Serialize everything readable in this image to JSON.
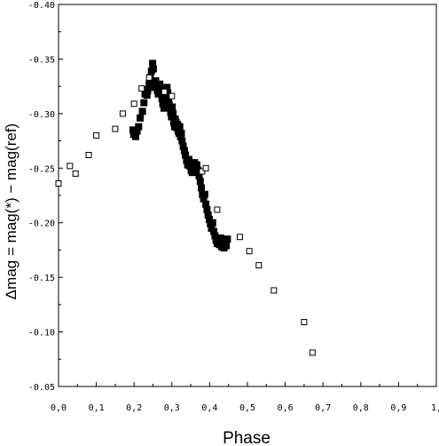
{
  "chart_data": {
    "type": "scatter",
    "title": "",
    "xlabel": "Phase",
    "ylabel": "Δmag = mag(*) − mag(ref)",
    "xlim": [
      0.0,
      1.0
    ],
    "ylim": [
      -0.4,
      -0.05
    ],
    "y_axis_inverted": true,
    "grid": false,
    "legend": "none",
    "x_ticks": [
      {
        "value": 0.0,
        "label": "0,0"
      },
      {
        "value": 0.1,
        "label": "0,1"
      },
      {
        "value": 0.2,
        "label": "0,2"
      },
      {
        "value": 0.3,
        "label": "0,3"
      },
      {
        "value": 0.4,
        "label": "0,4"
      },
      {
        "value": 0.5,
        "label": "0,5"
      },
      {
        "value": 0.6,
        "label": "0,6"
      },
      {
        "value": 0.7,
        "label": "0,7"
      },
      {
        "value": 0.8,
        "label": "0,8"
      },
      {
        "value": 0.9,
        "label": "0,9"
      },
      {
        "value": 1.0,
        "label": "1,"
      }
    ],
    "y_ticks": [
      {
        "value": -0.4,
        "label": "-0.40"
      },
      {
        "value": -0.35,
        "label": "-0.35"
      },
      {
        "value": -0.3,
        "label": "-0.30"
      },
      {
        "value": -0.25,
        "label": "-0.25"
      },
      {
        "value": -0.2,
        "label": "-0.20"
      },
      {
        "value": -0.15,
        "label": "-0.15"
      },
      {
        "value": -0.1,
        "label": "-0.10"
      },
      {
        "value": -0.05,
        "label": "-0.05"
      }
    ],
    "series": [
      {
        "marker": "filled-square",
        "color": "#000000",
        "points": [
          [
            0.197,
            -0.285
          ],
          [
            0.199,
            -0.281
          ],
          [
            0.201,
            -0.283
          ],
          [
            0.204,
            -0.279
          ],
          [
            0.208,
            -0.284
          ],
          [
            0.212,
            -0.288
          ],
          [
            0.216,
            -0.296
          ],
          [
            0.222,
            -0.302
          ],
          [
            0.226,
            -0.31
          ],
          [
            0.229,
            -0.318
          ],
          [
            0.231,
            -0.322
          ],
          [
            0.234,
            -0.317
          ],
          [
            0.236,
            -0.321
          ],
          [
            0.24,
            -0.327
          ],
          [
            0.243,
            -0.333
          ],
          [
            0.246,
            -0.339
          ],
          [
            0.249,
            -0.346
          ],
          [
            0.251,
            -0.341
          ],
          [
            0.253,
            -0.329
          ],
          [
            0.255,
            -0.324
          ],
          [
            0.257,
            -0.33
          ],
          [
            0.259,
            -0.326
          ],
          [
            0.262,
            -0.321
          ],
          [
            0.264,
            -0.318
          ],
          [
            0.266,
            -0.323
          ],
          [
            0.268,
            -0.327
          ],
          [
            0.27,
            -0.322
          ],
          [
            0.272,
            -0.318
          ],
          [
            0.274,
            -0.314
          ],
          [
            0.276,
            -0.309
          ],
          [
            0.279,
            -0.305
          ],
          [
            0.281,
            -0.31
          ],
          [
            0.283,
            -0.315
          ],
          [
            0.285,
            -0.32
          ],
          [
            0.287,
            -0.324
          ],
          [
            0.289,
            -0.319
          ],
          [
            0.291,
            -0.313
          ],
          [
            0.293,
            -0.308
          ],
          [
            0.295,
            -0.305
          ],
          [
            0.297,
            -0.301
          ],
          [
            0.299,
            -0.297
          ],
          [
            0.301,
            -0.306
          ],
          [
            0.303,
            -0.3
          ],
          [
            0.305,
            -0.292
          ],
          [
            0.307,
            -0.288
          ],
          [
            0.309,
            -0.295
          ],
          [
            0.311,
            -0.292
          ],
          [
            0.313,
            -0.287
          ],
          [
            0.315,
            -0.29
          ],
          [
            0.317,
            -0.284
          ],
          [
            0.319,
            -0.282
          ],
          [
            0.321,
            -0.288
          ],
          [
            0.323,
            -0.279
          ],
          [
            0.325,
            -0.282
          ],
          [
            0.327,
            -0.275
          ],
          [
            0.33,
            -0.27
          ],
          [
            0.333,
            -0.266
          ],
          [
            0.336,
            -0.262
          ],
          [
            0.339,
            -0.257
          ],
          [
            0.342,
            -0.253
          ],
          [
            0.345,
            -0.258
          ],
          [
            0.348,
            -0.252
          ],
          [
            0.351,
            -0.248
          ],
          [
            0.354,
            -0.246
          ],
          [
            0.357,
            -0.252
          ],
          [
            0.36,
            -0.255
          ],
          [
            0.363,
            -0.25
          ],
          [
            0.366,
            -0.253
          ],
          [
            0.369,
            -0.248
          ],
          [
            0.372,
            -0.243
          ],
          [
            0.375,
            -0.238
          ],
          [
            0.378,
            -0.232
          ],
          [
            0.381,
            -0.226
          ],
          [
            0.384,
            -0.222
          ],
          [
            0.387,
            -0.226
          ],
          [
            0.39,
            -0.217
          ],
          [
            0.393,
            -0.212
          ],
          [
            0.396,
            -0.207
          ],
          [
            0.399,
            -0.203
          ],
          [
            0.402,
            -0.199
          ],
          [
            0.405,
            -0.195
          ],
          [
            0.408,
            -0.2
          ],
          [
            0.411,
            -0.192
          ],
          [
            0.414,
            -0.188
          ],
          [
            0.417,
            -0.184
          ],
          [
            0.42,
            -0.181
          ],
          [
            0.423,
            -0.185
          ],
          [
            0.426,
            -0.18
          ],
          [
            0.429,
            -0.186
          ],
          [
            0.432,
            -0.178
          ],
          [
            0.435,
            -0.182
          ],
          [
            0.438,
            -0.177
          ],
          [
            0.441,
            -0.183
          ],
          [
            0.444,
            -0.179
          ],
          [
            0.447,
            -0.185
          ]
        ]
      },
      {
        "marker": "open-square",
        "color": "#000000",
        "points": [
          [
            0.0,
            -0.236
          ],
          [
            0.03,
            -0.252
          ],
          [
            0.045,
            -0.245
          ],
          [
            0.08,
            -0.262
          ],
          [
            0.1,
            -0.28
          ],
          [
            0.15,
            -0.286
          ],
          [
            0.17,
            -0.3
          ],
          [
            0.2,
            -0.309
          ],
          [
            0.22,
            -0.323
          ],
          [
            0.24,
            -0.333
          ],
          [
            0.28,
            -0.32
          ],
          [
            0.3,
            -0.316
          ],
          [
            0.38,
            -0.247
          ],
          [
            0.39,
            -0.25
          ],
          [
            0.42,
            -0.212
          ],
          [
            0.48,
            -0.187
          ],
          [
            0.505,
            -0.174
          ],
          [
            0.53,
            -0.161
          ],
          [
            0.57,
            -0.138
          ],
          [
            0.65,
            -0.109
          ],
          [
            0.672,
            -0.081
          ]
        ]
      }
    ]
  }
}
